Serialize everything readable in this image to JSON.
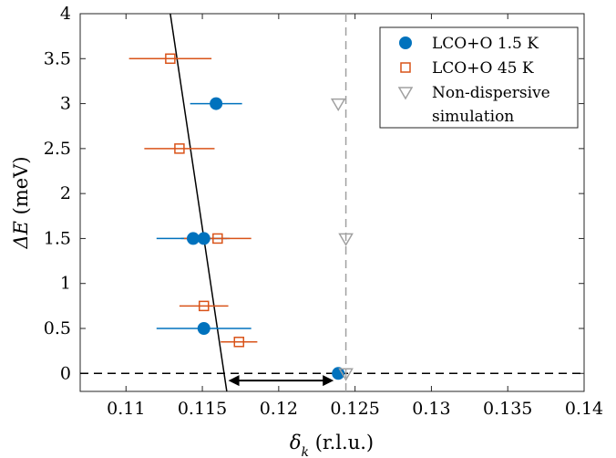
{
  "chart_data": {
    "type": "scatter",
    "xlabel": "δk (r.l.u.)",
    "ylabel": "ΔE (meV)",
    "xlabel_main": "δ",
    "xlabel_sub": "k",
    "xlabel_rest": " (r.l.u.)",
    "ylabel_main": "ΔE",
    "ylabel_rest": " (meV)",
    "xlim": [
      0.107,
      0.14
    ],
    "ylim": [
      -0.2,
      4
    ],
    "xticks": [
      0.11,
      0.115,
      0.12,
      0.125,
      0.13,
      0.135,
      0.14
    ],
    "xtick_labels": [
      "0.11",
      "0.115",
      "0.12",
      "0.125",
      "0.13",
      "0.135",
      "0.14"
    ],
    "yticks": [
      0,
      0.5,
      1,
      1.5,
      2,
      2.5,
      3,
      3.5,
      4
    ],
    "ytick_labels": [
      "0",
      "0.5",
      "1",
      "1.5",
      "2",
      "2.5",
      "3",
      "3.5",
      "4"
    ],
    "grid": false,
    "legend_position": "top-right",
    "series": [
      {
        "name": "LCO+O 1.5 K",
        "marker": "filled-circle",
        "color": "#0072BD",
        "points": [
          {
            "x": 0.1239,
            "y": 0.0,
            "xerr": 0.0
          },
          {
            "x": 0.1151,
            "y": 0.5,
            "xerr": 0.0031
          },
          {
            "x": 0.1144,
            "y": 1.5,
            "xerr": 0.0024
          },
          {
            "x": 0.1151,
            "y": 1.5,
            "xerr": 0.0015
          },
          {
            "x": 0.1159,
            "y": 3.0,
            "xerr": 0.0017
          }
        ]
      },
      {
        "name": "LCO+O 45 K",
        "marker": "open-square",
        "color": "#D95319",
        "points": [
          {
            "x": 0.1174,
            "y": 0.35,
            "xerr": 0.0012
          },
          {
            "x": 0.1151,
            "y": 0.75,
            "xerr": 0.0016
          },
          {
            "x": 0.116,
            "y": 1.5,
            "xerr": 0.0022
          },
          {
            "x": 0.1135,
            "y": 2.5,
            "xerr": 0.0023
          },
          {
            "x": 0.1129,
            "y": 3.5,
            "xerr": 0.0027
          }
        ]
      },
      {
        "name": "Non-dispersive simulation",
        "marker": "open-triangle-down",
        "color": "#A0A0A0",
        "points": [
          {
            "x": 0.1244,
            "y": 0.0
          },
          {
            "x": 0.1244,
            "y": 1.5
          },
          {
            "x": 0.1239,
            "y": 3.0
          }
        ]
      }
    ],
    "legend": [
      {
        "lines": [
          "LCO+O 1.5 K"
        ],
        "marker": "filled-circle",
        "color": "#0072BD"
      },
      {
        "lines": [
          "LCO+O 45 K"
        ],
        "marker": "open-square",
        "color": "#D95319"
      },
      {
        "lines": [
          "Non-dispersive",
          "simulation"
        ],
        "marker": "open-triangle-down",
        "color": "#A0A0A0"
      }
    ],
    "reference_lines": [
      {
        "kind": "fit-line",
        "color": "#000000",
        "from": [
          0.1166,
          -0.2
        ],
        "to": [
          0.1129,
          4.0
        ]
      },
      {
        "kind": "dashed-horizontal",
        "color": "#000000",
        "y": 0
      },
      {
        "kind": "dashed-vertical",
        "color": "#A0A0A0",
        "x": 0.1244
      }
    ],
    "annotations": [
      {
        "kind": "double-arrow",
        "color": "#000000",
        "y": -0.08,
        "x_from": 0.1167,
        "x_to": 0.1236
      }
    ]
  }
}
